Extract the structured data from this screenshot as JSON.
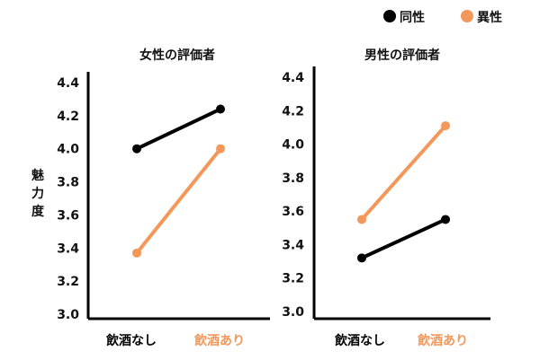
{
  "legend": [
    {
      "label": "同性",
      "color": "#000000"
    },
    {
      "label": "異性",
      "color": "#f4975a"
    }
  ],
  "ylabel": "魅力度",
  "chart_data": [
    {
      "type": "line",
      "title": "女性の評価者",
      "categories": [
        "飲酒なし",
        "飲酒あり"
      ],
      "category_colors": [
        "#000000",
        "#f4975a"
      ],
      "ylabel": "魅力度",
      "ylim": [
        3.0,
        4.4
      ],
      "yticks": [
        "3.0",
        "3.2",
        "3.4",
        "3.6",
        "3.8",
        "4.0",
        "4.2",
        "4.4"
      ],
      "grid": false,
      "legend": "top-right",
      "series": [
        {
          "name": "同性",
          "color": "#000000",
          "values": [
            4.0,
            4.24
          ]
        },
        {
          "name": "異性",
          "color": "#f4975a",
          "values": [
            3.37,
            4.0
          ]
        }
      ]
    },
    {
      "type": "line",
      "title": "男性の評価者",
      "categories": [
        "飲酒なし",
        "飲酒あり"
      ],
      "category_colors": [
        "#000000",
        "#f4975a"
      ],
      "ylim": [
        3.0,
        4.4
      ],
      "yticks": [
        "3.0",
        "3.2",
        "3.4",
        "3.6",
        "3.8",
        "4.0",
        "4.2",
        "4.4"
      ],
      "grid": false,
      "series": [
        {
          "name": "同性",
          "color": "#000000",
          "values": [
            3.32,
            3.55
          ]
        },
        {
          "name": "異性",
          "color": "#f4975a",
          "values": [
            3.55,
            4.11
          ]
        }
      ]
    }
  ]
}
